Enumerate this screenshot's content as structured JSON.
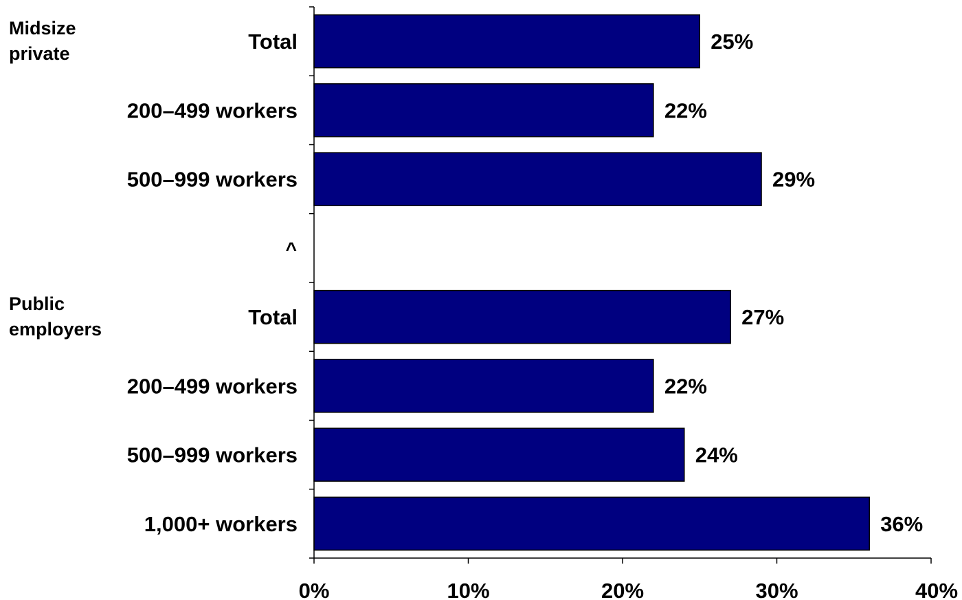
{
  "colors": {
    "bar_fill": "#000080",
    "bar_stroke": "#000000",
    "axis": "#000000"
  },
  "chart_data": {
    "type": "bar",
    "orientation": "horizontal",
    "xlim": [
      0,
      40
    ],
    "xticks": [
      "0%",
      "10%",
      "20%",
      "30%",
      "40%"
    ],
    "grid": false,
    "legend": "none",
    "groups": [
      {
        "lines": [
          "Midsize",
          "private"
        ]
      },
      {
        "lines": [
          "Public",
          "employers"
        ]
      }
    ],
    "rows": [
      {
        "label": "Total",
        "value": 25,
        "value_label": "25%",
        "group": 0
      },
      {
        "label": "200–499 workers",
        "value": 22,
        "value_label": "22%",
        "group": 0
      },
      {
        "label": "500–999 workers",
        "value": 29,
        "value_label": "29%",
        "group": 0
      },
      {
        "label": "^",
        "value": null,
        "value_label": "",
        "group": null
      },
      {
        "label": "Total",
        "value": 27,
        "value_label": "27%",
        "group": 1
      },
      {
        "label": "200–499 workers",
        "value": 22,
        "value_label": "22%",
        "group": 1
      },
      {
        "label": "500–999 workers",
        "value": 24,
        "value_label": "24%",
        "group": 1
      },
      {
        "label": "1,000+ workers",
        "value": 36,
        "value_label": "36%",
        "group": 1
      }
    ]
  }
}
